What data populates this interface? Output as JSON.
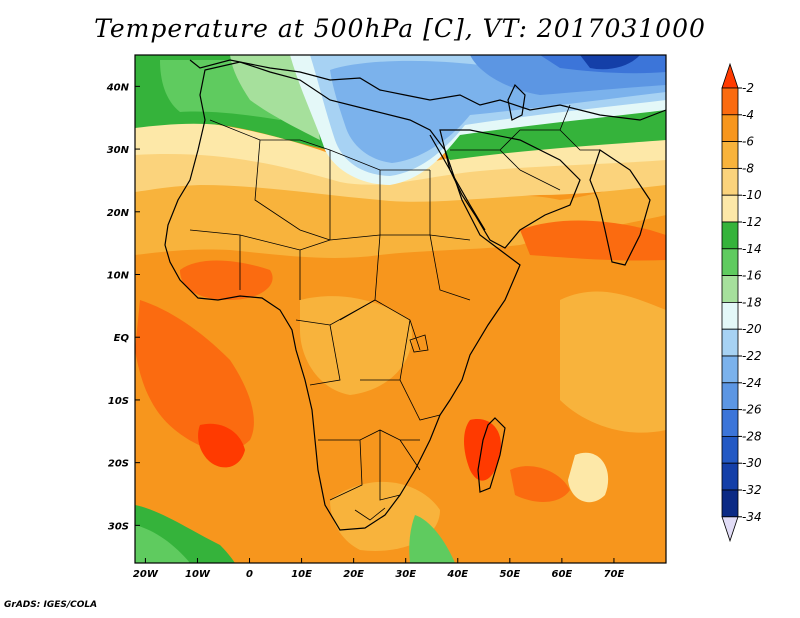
{
  "title": "Temperature at 500hPa [C], VT: 2017031000",
  "credit": "GrADS: IGES/COLA",
  "map": {
    "lon_range": [
      -22,
      80
    ],
    "lat_range": [
      -36,
      45
    ],
    "lon_ticks": [
      {
        "value": -20,
        "label": "20W"
      },
      {
        "value": -10,
        "label": "10W"
      },
      {
        "value": 0,
        "label": "0"
      },
      {
        "value": 10,
        "label": "10E"
      },
      {
        "value": 20,
        "label": "20E"
      },
      {
        "value": 30,
        "label": "30E"
      },
      {
        "value": 40,
        "label": "40E"
      },
      {
        "value": 50,
        "label": "50E"
      },
      {
        "value": 60,
        "label": "60E"
      },
      {
        "value": 70,
        "label": "70E"
      }
    ],
    "lat_ticks": [
      {
        "value": 40,
        "label": "40N"
      },
      {
        "value": 30,
        "label": "30N"
      },
      {
        "value": 20,
        "label": "20N"
      },
      {
        "value": 10,
        "label": "10N"
      },
      {
        "value": 0,
        "label": "EQ"
      },
      {
        "value": -10,
        "label": "10S"
      },
      {
        "value": -20,
        "label": "20S"
      },
      {
        "value": -30,
        "label": "30S"
      }
    ]
  },
  "colorbar": {
    "levels": [
      "-2",
      "-4",
      "-6",
      "-8",
      "-10",
      "-12",
      "-14",
      "-16",
      "-18",
      "-20",
      "-22",
      "-24",
      "-26",
      "-28",
      "-30",
      "-32",
      "-34"
    ],
    "colors": [
      "#ff3a00",
      "#fb6b10",
      "#f7961d",
      "#f8b33c",
      "#fbd37c",
      "#fde8a8",
      "#35b33b",
      "#5fcb5f",
      "#a6e09c",
      "#e4f8f8",
      "#a7d2f3",
      "#7bb2ec",
      "#5c96e3",
      "#3c75d9",
      "#2359c4",
      "#143fa8",
      "#0b2a85",
      "#e1dcf6"
    ]
  }
}
